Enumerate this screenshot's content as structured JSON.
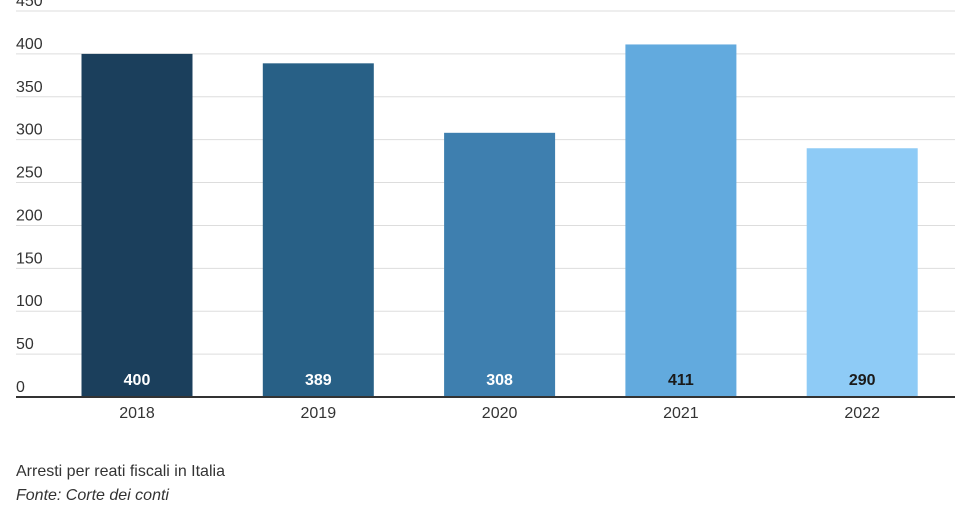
{
  "chart_data": {
    "type": "bar",
    "categories": [
      "2018",
      "2019",
      "2020",
      "2021",
      "2022"
    ],
    "values": [
      400,
      389,
      308,
      411,
      290
    ],
    "ylim": [
      0,
      450
    ],
    "yticks": [
      0,
      50,
      100,
      150,
      200,
      250,
      300,
      350,
      400,
      450
    ],
    "grid": true,
    "bar_colors": [
      "#1b3f5c",
      "#286086",
      "#3e7faf",
      "#62aade",
      "#8ecbf6"
    ],
    "label_colors": [
      "#ffffff",
      "#ffffff",
      "#ffffff",
      "#1a1a1a",
      "#1a1a1a"
    ],
    "title": "",
    "xlabel": "",
    "ylabel": ""
  },
  "caption": {
    "title": "Arresti per reati fiscali in Italia",
    "source": "Fonte: Corte dei conti"
  }
}
